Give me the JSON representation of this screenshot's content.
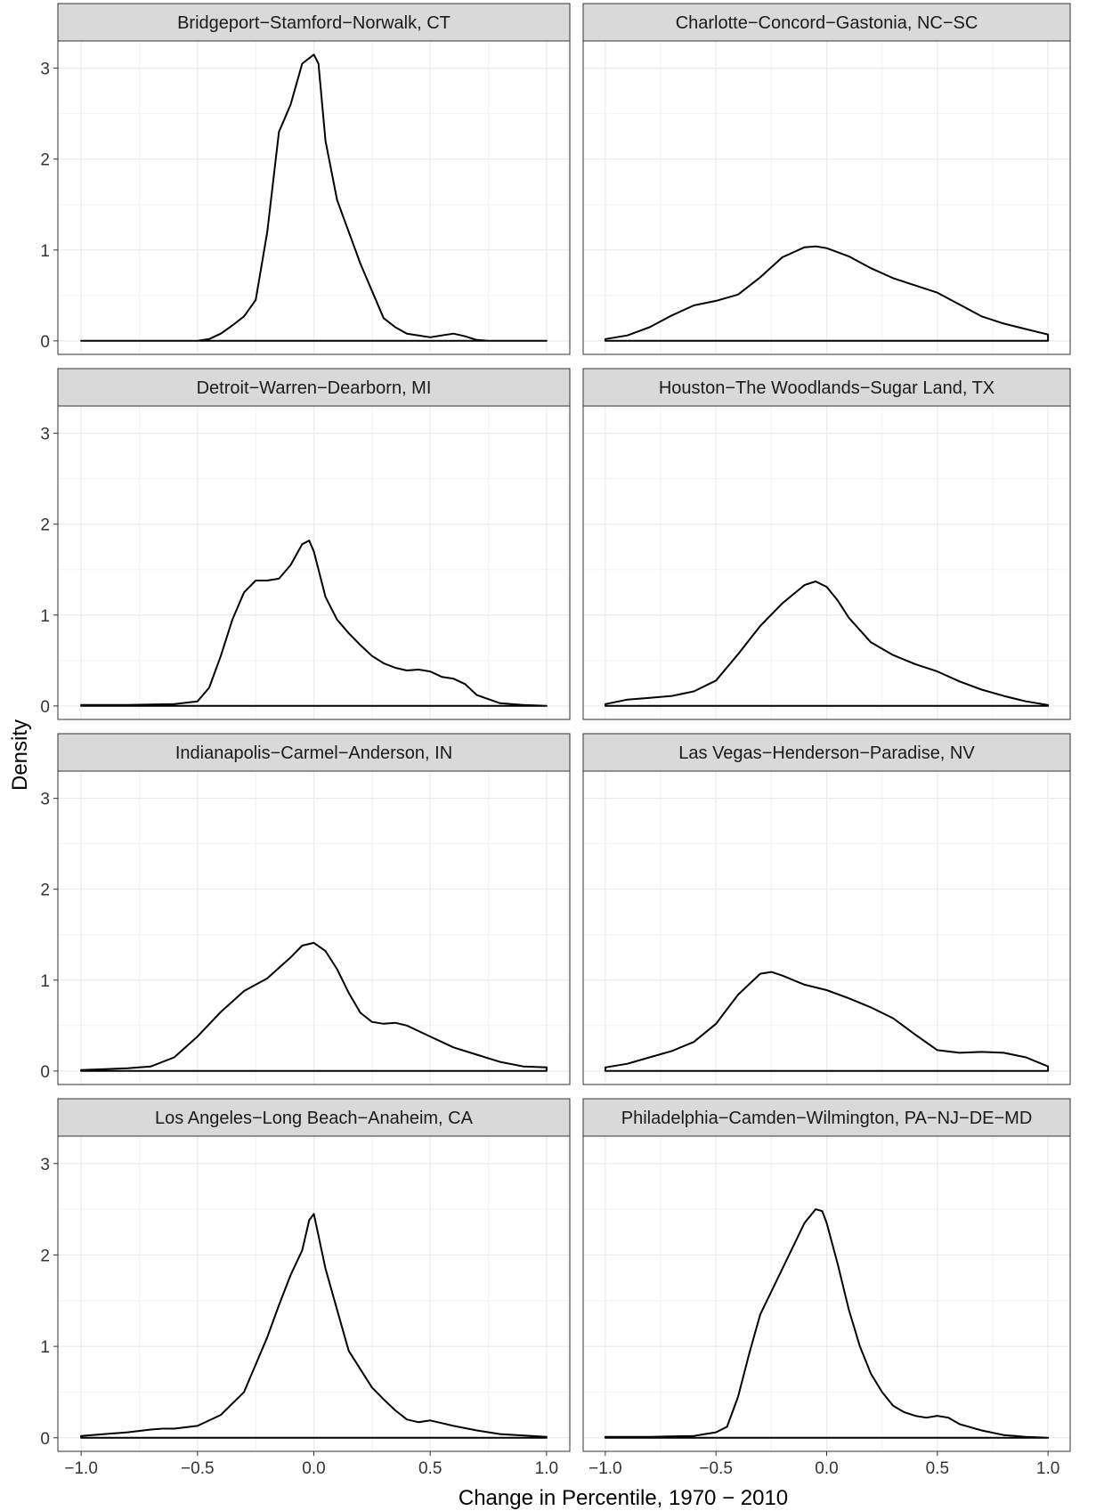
{
  "chart_data": {
    "type": "line",
    "xlabel": "Change in Percentile, 1970 − 2010",
    "ylabel": "Density",
    "xlim": [
      -1.0,
      1.0
    ],
    "ylim": [
      0,
      3.3
    ],
    "xticks": [
      -1.0,
      -0.5,
      0.0,
      0.5,
      1.0
    ],
    "xtick_labels": [
      "−1.0",
      "−0.5",
      "0.0",
      "0.5",
      "1.0"
    ],
    "yticks": [
      0,
      1,
      2,
      3
    ],
    "ytick_labels": [
      "0",
      "1",
      "2",
      "3"
    ],
    "grid": true,
    "panels": [
      {
        "title": "Bridgeport−Stamford−Norwalk, CT",
        "x": [
          -1.0,
          -0.5,
          -0.45,
          -0.4,
          -0.35,
          -0.3,
          -0.25,
          -0.2,
          -0.15,
          -0.1,
          -0.05,
          0.0,
          0.02,
          0.05,
          0.1,
          0.15,
          0.2,
          0.25,
          0.3,
          0.35,
          0.4,
          0.45,
          0.5,
          0.55,
          0.6,
          0.65,
          0.7,
          0.75,
          1.0
        ],
        "y": [
          0.0,
          0.0,
          0.02,
          0.08,
          0.17,
          0.27,
          0.45,
          1.2,
          2.3,
          2.6,
          3.05,
          3.15,
          3.05,
          2.2,
          1.55,
          1.2,
          0.85,
          0.55,
          0.25,
          0.15,
          0.08,
          0.06,
          0.04,
          0.06,
          0.08,
          0.05,
          0.01,
          0.0,
          0.0
        ]
      },
      {
        "title": "Charlotte−Concord−Gastonia, NC−SC",
        "x": [
          -1.0,
          -0.9,
          -0.8,
          -0.7,
          -0.6,
          -0.5,
          -0.4,
          -0.3,
          -0.2,
          -0.1,
          -0.05,
          0.0,
          0.1,
          0.2,
          0.3,
          0.4,
          0.5,
          0.6,
          0.7,
          0.8,
          0.9,
          1.0
        ],
        "y": [
          0.02,
          0.06,
          0.15,
          0.28,
          0.39,
          0.44,
          0.51,
          0.7,
          0.92,
          1.03,
          1.04,
          1.02,
          0.93,
          0.8,
          0.69,
          0.61,
          0.53,
          0.4,
          0.27,
          0.19,
          0.13,
          0.07
        ]
      },
      {
        "title": "Detroit−Warren−Dearborn, MI",
        "x": [
          -1.0,
          -0.8,
          -0.6,
          -0.5,
          -0.45,
          -0.4,
          -0.35,
          -0.3,
          -0.25,
          -0.2,
          -0.15,
          -0.1,
          -0.05,
          -0.02,
          0.0,
          0.05,
          0.1,
          0.15,
          0.2,
          0.25,
          0.3,
          0.35,
          0.4,
          0.45,
          0.5,
          0.55,
          0.6,
          0.65,
          0.7,
          0.8,
          0.9,
          1.0
        ],
        "y": [
          0.01,
          0.01,
          0.02,
          0.05,
          0.2,
          0.55,
          0.95,
          1.25,
          1.38,
          1.38,
          1.4,
          1.55,
          1.78,
          1.82,
          1.7,
          1.2,
          0.95,
          0.8,
          0.67,
          0.55,
          0.47,
          0.42,
          0.39,
          0.4,
          0.38,
          0.32,
          0.3,
          0.24,
          0.12,
          0.03,
          0.01,
          0.0
        ]
      },
      {
        "title": "Houston−The Woodlands−Sugar Land, TX",
        "x": [
          -1.0,
          -0.9,
          -0.8,
          -0.7,
          -0.6,
          -0.5,
          -0.4,
          -0.3,
          -0.2,
          -0.1,
          -0.05,
          0.0,
          0.05,
          0.1,
          0.2,
          0.3,
          0.4,
          0.5,
          0.6,
          0.7,
          0.8,
          0.9,
          1.0
        ],
        "y": [
          0.02,
          0.07,
          0.09,
          0.11,
          0.16,
          0.28,
          0.57,
          0.88,
          1.13,
          1.33,
          1.37,
          1.31,
          1.16,
          0.97,
          0.7,
          0.56,
          0.46,
          0.38,
          0.27,
          0.18,
          0.11,
          0.05,
          0.01
        ]
      },
      {
        "title": "Indianapolis−Carmel−Anderson, IN",
        "x": [
          -1.0,
          -0.8,
          -0.7,
          -0.6,
          -0.5,
          -0.4,
          -0.3,
          -0.2,
          -0.1,
          -0.05,
          0.0,
          0.05,
          0.1,
          0.15,
          0.2,
          0.25,
          0.3,
          0.35,
          0.4,
          0.5,
          0.6,
          0.7,
          0.8,
          0.9,
          1.0
        ],
        "y": [
          0.01,
          0.03,
          0.05,
          0.15,
          0.38,
          0.65,
          0.88,
          1.02,
          1.25,
          1.38,
          1.41,
          1.32,
          1.12,
          0.86,
          0.64,
          0.54,
          0.52,
          0.53,
          0.5,
          0.38,
          0.26,
          0.18,
          0.1,
          0.05,
          0.04
        ]
      },
      {
        "title": "Las Vegas−Henderson−Paradise, NV",
        "x": [
          -1.0,
          -0.9,
          -0.8,
          -0.7,
          -0.6,
          -0.5,
          -0.4,
          -0.3,
          -0.25,
          -0.2,
          -0.1,
          0.0,
          0.1,
          0.2,
          0.3,
          0.4,
          0.5,
          0.6,
          0.7,
          0.8,
          0.9,
          1.0
        ],
        "y": [
          0.04,
          0.08,
          0.15,
          0.22,
          0.32,
          0.52,
          0.84,
          1.07,
          1.09,
          1.05,
          0.95,
          0.89,
          0.8,
          0.7,
          0.58,
          0.4,
          0.23,
          0.2,
          0.21,
          0.2,
          0.15,
          0.05
        ]
      },
      {
        "title": "Los Angeles−Long Beach−Anaheim, CA",
        "x": [
          -1.0,
          -0.9,
          -0.8,
          -0.7,
          -0.65,
          -0.6,
          -0.5,
          -0.4,
          -0.3,
          -0.2,
          -0.15,
          -0.1,
          -0.05,
          -0.02,
          0.0,
          0.05,
          0.1,
          0.15,
          0.2,
          0.25,
          0.3,
          0.35,
          0.4,
          0.45,
          0.5,
          0.55,
          0.6,
          0.7,
          0.8,
          1.0
        ],
        "y": [
          0.02,
          0.04,
          0.06,
          0.09,
          0.1,
          0.1,
          0.13,
          0.25,
          0.5,
          1.1,
          1.45,
          1.78,
          2.05,
          2.38,
          2.45,
          1.85,
          1.4,
          0.95,
          0.75,
          0.55,
          0.42,
          0.3,
          0.2,
          0.17,
          0.19,
          0.16,
          0.13,
          0.08,
          0.04,
          0.01
        ]
      },
      {
        "title": "Philadelphia−Camden−Wilmington, PA−NJ−DE−MD",
        "x": [
          -1.0,
          -0.8,
          -0.6,
          -0.55,
          -0.5,
          -0.45,
          -0.4,
          -0.35,
          -0.3,
          -0.2,
          -0.1,
          -0.05,
          -0.02,
          0.0,
          0.05,
          0.1,
          0.15,
          0.2,
          0.25,
          0.3,
          0.35,
          0.4,
          0.45,
          0.5,
          0.55,
          0.6,
          0.7,
          0.8,
          0.9,
          1.0
        ],
        "y": [
          0.01,
          0.01,
          0.02,
          0.04,
          0.06,
          0.12,
          0.45,
          0.92,
          1.35,
          1.85,
          2.35,
          2.5,
          2.48,
          2.35,
          1.9,
          1.4,
          1.0,
          0.7,
          0.5,
          0.35,
          0.28,
          0.24,
          0.22,
          0.24,
          0.22,
          0.15,
          0.08,
          0.03,
          0.01,
          0.0
        ]
      }
    ]
  }
}
